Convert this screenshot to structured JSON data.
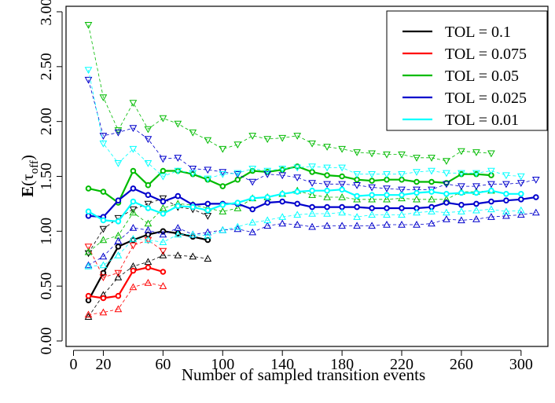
{
  "chart_data": {
    "type": "line",
    "title": "",
    "xlabel": "Number of sampled transition events",
    "ylabel_main": "E",
    "ylabel_sub": "off",
    "ylabel_tau": "τ",
    "xlim": [
      -5,
      318
    ],
    "ylim": [
      -0.05,
      3.05
    ],
    "xticks": [
      0,
      20,
      60,
      100,
      140,
      180,
      220,
      260,
      300
    ],
    "yticks": [
      0.0,
      0.5,
      1.0,
      1.5,
      2.0,
      2.5,
      3.0
    ],
    "ytick_labels": [
      "0.00",
      "0.50",
      "1.00",
      "1.50",
      "2.00",
      "2.50",
      "3.00"
    ],
    "legend_position": "top-right",
    "series": [
      {
        "name": "TOL = 0.1",
        "color": "#000000",
        "x": [
          10,
          20,
          30,
          40,
          50,
          60,
          70,
          80,
          90
        ],
        "mean": [
          0.37,
          0.62,
          0.86,
          0.92,
          0.97,
          1.0,
          0.98,
          0.95,
          0.92
        ],
        "upper": [
          0.8,
          1.02,
          1.12,
          1.2,
          1.25,
          1.3,
          1.22,
          1.2,
          1.14
        ],
        "lower": [
          0.22,
          0.42,
          0.58,
          0.68,
          0.72,
          0.78,
          0.78,
          0.77,
          0.75
        ]
      },
      {
        "name": "TOL = 0.075",
        "color": "#ff0000",
        "x": [
          10,
          20,
          30,
          40,
          50,
          60
        ],
        "mean": [
          0.41,
          0.39,
          0.41,
          0.64,
          0.67,
          0.63
        ],
        "upper": [
          0.86,
          0.58,
          0.62,
          0.87,
          0.92,
          0.82
        ],
        "lower": [
          0.24,
          0.26,
          0.29,
          0.49,
          0.53,
          0.5
        ]
      },
      {
        "name": "TOL = 0.05",
        "color": "#00bb00",
        "x": [
          10,
          20,
          30,
          40,
          50,
          60,
          70,
          80,
          90,
          100,
          110,
          120,
          130,
          140,
          150,
          160,
          170,
          180,
          190,
          200,
          210,
          220,
          230,
          240,
          250,
          260,
          270,
          280
        ],
        "mean": [
          1.39,
          1.36,
          1.26,
          1.55,
          1.42,
          1.55,
          1.55,
          1.52,
          1.47,
          1.41,
          1.47,
          1.55,
          1.54,
          1.56,
          1.59,
          1.54,
          1.51,
          1.5,
          1.47,
          1.46,
          1.47,
          1.47,
          1.45,
          1.45,
          1.44,
          1.52,
          1.52,
          1.51
        ],
        "upper": [
          2.88,
          2.22,
          1.92,
          2.17,
          1.93,
          2.03,
          1.98,
          1.9,
          1.83,
          1.75,
          1.79,
          1.87,
          1.84,
          1.85,
          1.87,
          1.8,
          1.77,
          1.75,
          1.72,
          1.71,
          1.7,
          1.7,
          1.67,
          1.67,
          1.64,
          1.73,
          1.72,
          1.71
        ],
        "lower": [
          0.81,
          0.92,
          0.96,
          1.17,
          1.07,
          1.21,
          1.25,
          1.24,
          1.21,
          1.18,
          1.21,
          1.3,
          1.31,
          1.34,
          1.37,
          1.33,
          1.31,
          1.31,
          1.29,
          1.29,
          1.29,
          1.3,
          1.29,
          1.29,
          1.29,
          1.36,
          1.36,
          1.37
        ]
      },
      {
        "name": "TOL = 0.025",
        "color": "#0000cc",
        "x": [
          10,
          20,
          30,
          40,
          50,
          60,
          70,
          80,
          90,
          100,
          110,
          120,
          130,
          140,
          150,
          160,
          170,
          180,
          190,
          200,
          210,
          220,
          230,
          240,
          250,
          260,
          270,
          280,
          290,
          300,
          310
        ],
        "mean": [
          1.14,
          1.13,
          1.28,
          1.39,
          1.33,
          1.27,
          1.32,
          1.24,
          1.25,
          1.25,
          1.25,
          1.2,
          1.26,
          1.27,
          1.25,
          1.22,
          1.22,
          1.22,
          1.22,
          1.21,
          1.21,
          1.21,
          1.21,
          1.22,
          1.26,
          1.24,
          1.25,
          1.27,
          1.28,
          1.29,
          1.31
        ],
        "upper": [
          2.38,
          1.87,
          1.9,
          1.94,
          1.84,
          1.66,
          1.67,
          1.57,
          1.56,
          1.54,
          1.52,
          1.45,
          1.52,
          1.51,
          1.49,
          1.44,
          1.43,
          1.43,
          1.42,
          1.4,
          1.39,
          1.38,
          1.38,
          1.38,
          1.43,
          1.41,
          1.41,
          1.43,
          1.43,
          1.44,
          1.47
        ],
        "lower": [
          0.69,
          0.77,
          0.91,
          1.03,
          1.01,
          0.97,
          1.03,
          0.97,
          0.99,
          1.01,
          1.02,
          0.99,
          1.05,
          1.07,
          1.06,
          1.04,
          1.05,
          1.05,
          1.05,
          1.05,
          1.06,
          1.06,
          1.06,
          1.07,
          1.11,
          1.1,
          1.11,
          1.13,
          1.14,
          1.15,
          1.17
        ]
      },
      {
        "name": "TOL = 0.01",
        "color": "#00ffff",
        "x": [
          10,
          20,
          30,
          40,
          50,
          60,
          70,
          80,
          90,
          100,
          110,
          120,
          130,
          140,
          150,
          160,
          170,
          180,
          190,
          200,
          210,
          220,
          230,
          240,
          250,
          260,
          270,
          280,
          290,
          300
        ],
        "mean": [
          1.18,
          1.1,
          1.09,
          1.27,
          1.21,
          1.16,
          1.23,
          1.22,
          1.19,
          1.24,
          1.26,
          1.3,
          1.31,
          1.34,
          1.36,
          1.37,
          1.37,
          1.38,
          1.32,
          1.33,
          1.33,
          1.33,
          1.35,
          1.36,
          1.34,
          1.35,
          1.35,
          1.37,
          1.34,
          1.34
        ],
        "upper": [
          2.47,
          1.8,
          1.62,
          1.75,
          1.62,
          1.5,
          1.55,
          1.53,
          1.48,
          1.52,
          1.53,
          1.57,
          1.55,
          1.57,
          1.58,
          1.59,
          1.58,
          1.58,
          1.52,
          1.52,
          1.52,
          1.52,
          1.54,
          1.55,
          1.53,
          1.53,
          1.53,
          1.55,
          1.51,
          1.5
        ],
        "lower": [
          0.68,
          0.69,
          0.78,
          0.93,
          0.92,
          0.9,
          0.97,
          0.97,
          0.96,
          1.01,
          1.04,
          1.08,
          1.1,
          1.13,
          1.15,
          1.16,
          1.16,
          1.17,
          1.13,
          1.15,
          1.15,
          1.15,
          1.17,
          1.18,
          1.17,
          1.18,
          1.19,
          1.2,
          1.18,
          1.19
        ]
      }
    ]
  }
}
